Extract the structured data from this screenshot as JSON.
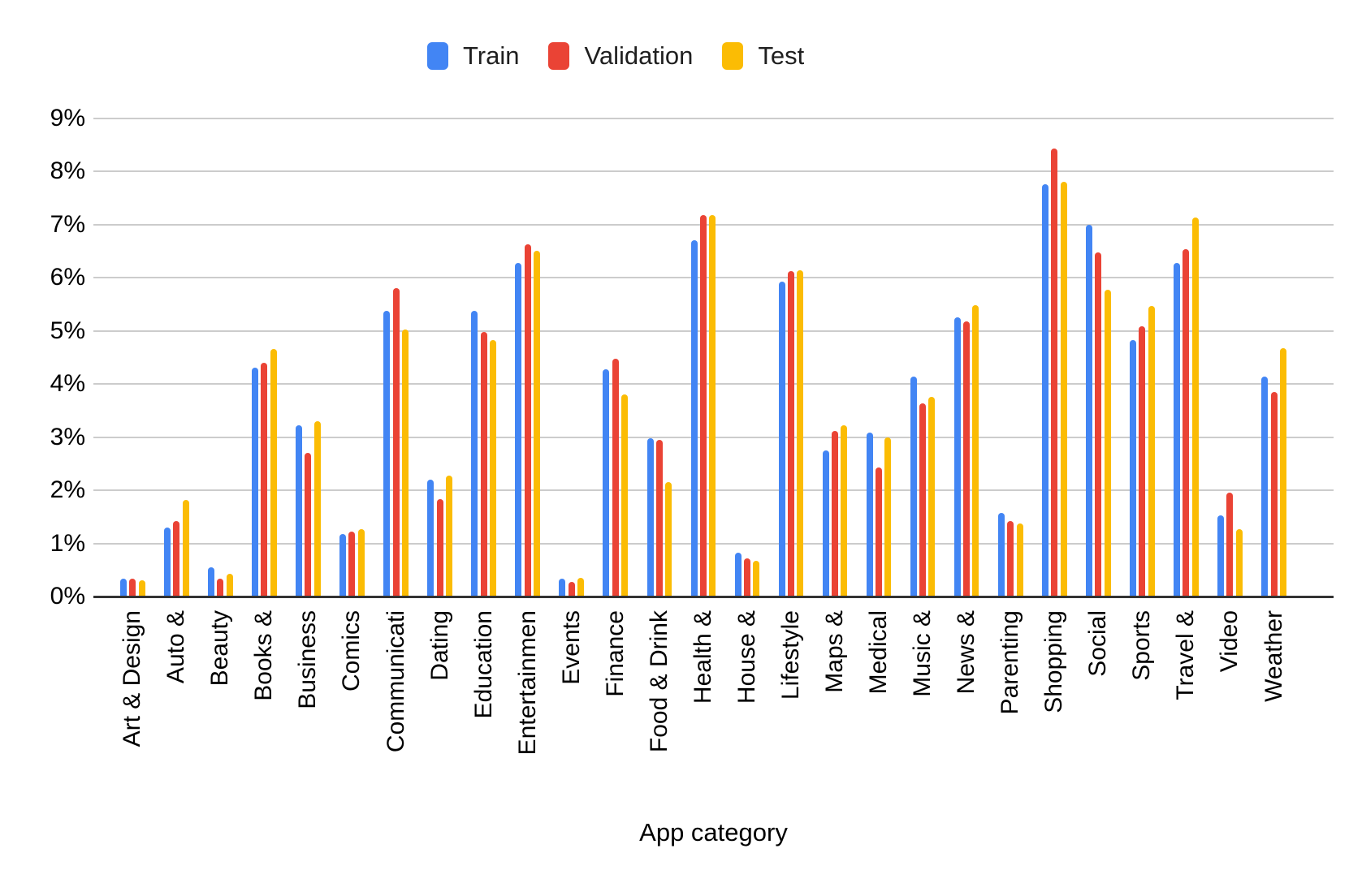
{
  "chart_data": {
    "type": "bar",
    "title": "",
    "xlabel": "App category",
    "ylabel": "",
    "y_tick_labels": [
      "0%",
      "1%",
      "2%",
      "3%",
      "4%",
      "5%",
      "6%",
      "7%",
      "8%",
      "9%"
    ],
    "ylim": [
      0,
      9
    ],
    "grid": true,
    "legend_position": "top",
    "categories": [
      "Art & Design",
      "Auto &",
      "Beauty",
      "Books &",
      "Business",
      "Comics",
      "Communicati",
      "Dating",
      "Education",
      "Entertainmen",
      "Events",
      "Finance",
      "Food & Drink",
      "Health &",
      "House &",
      "Lifestyle",
      "Maps &",
      "Medical",
      "Music &",
      "News &",
      "Parenting",
      "Shopping",
      "Social",
      "Sports",
      "Travel &",
      "Video",
      "Weather"
    ],
    "series": [
      {
        "name": "Train",
        "color": "#4285F4",
        "values": [
          0.33,
          1.3,
          0.55,
          4.3,
          3.22,
          1.17,
          5.38,
          2.2,
          5.37,
          6.28,
          0.33,
          4.27,
          2.97,
          6.7,
          0.83,
          5.92,
          2.75,
          3.08,
          4.13,
          5.25,
          1.57,
          7.75,
          7.0,
          4.83,
          6.27,
          1.53,
          4.13
        ]
      },
      {
        "name": "Validation",
        "color": "#EA4335",
        "values": [
          0.33,
          1.42,
          0.33,
          4.4,
          2.7,
          1.22,
          5.8,
          1.83,
          4.97,
          6.62,
          0.28,
          4.48,
          2.95,
          7.18,
          0.72,
          6.12,
          3.12,
          2.42,
          3.63,
          5.17,
          1.42,
          8.43,
          6.48,
          5.08,
          6.53,
          1.95,
          3.85
        ]
      },
      {
        "name": "Test",
        "color": "#FBBC04",
        "values": [
          0.3,
          1.82,
          0.42,
          4.65,
          3.3,
          1.27,
          5.03,
          2.28,
          4.83,
          6.5,
          0.35,
          3.8,
          2.15,
          7.18,
          0.67,
          6.13,
          3.22,
          3.0,
          3.75,
          5.48,
          1.38,
          7.8,
          5.77,
          5.47,
          7.13,
          1.27,
          4.67
        ]
      }
    ]
  }
}
